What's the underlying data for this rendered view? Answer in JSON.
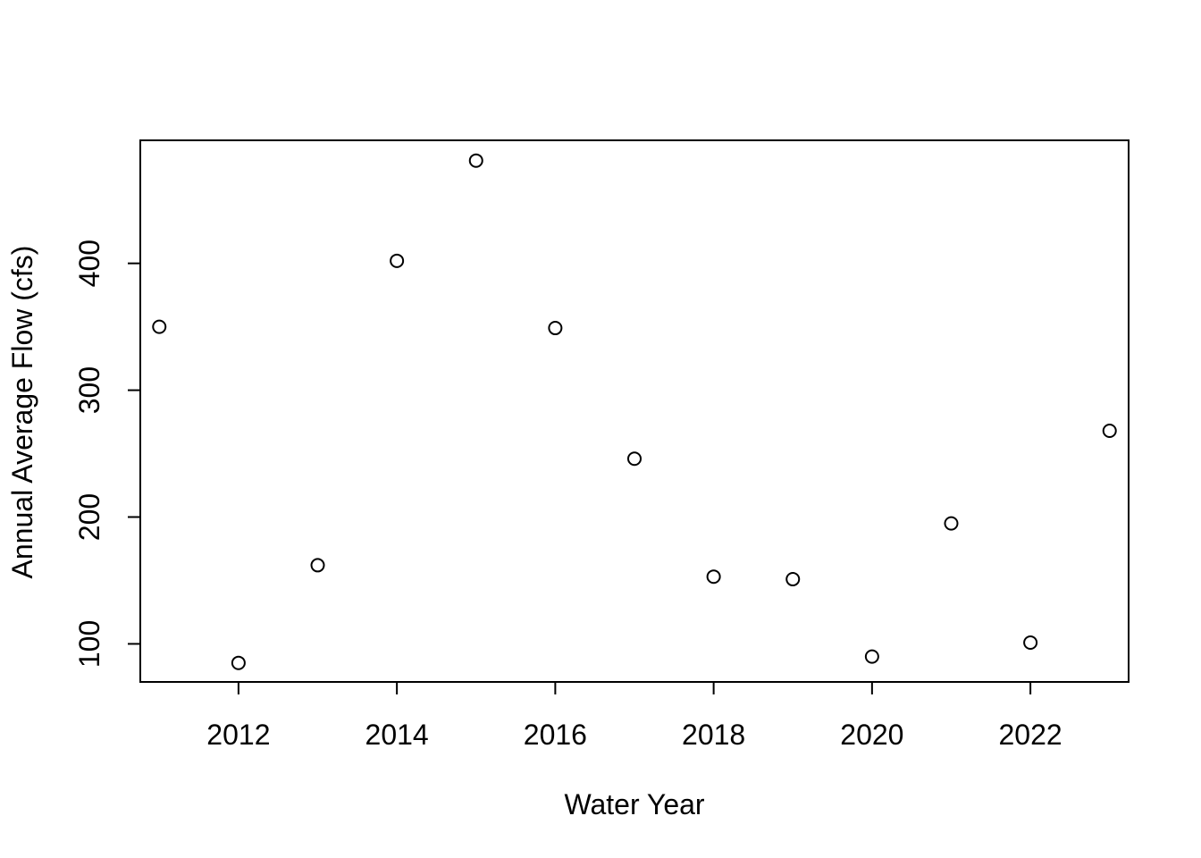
{
  "chart_data": {
    "type": "scatter",
    "title": "",
    "xlabel": "Water Year",
    "ylabel": "Annual Average Flow (cfs)",
    "xlim": [
      2010.76,
      2023.24
    ],
    "ylim": [
      70,
      497
    ],
    "x_ticks": [
      2012,
      2014,
      2016,
      2018,
      2020,
      2022
    ],
    "y_ticks": [
      100,
      200,
      300,
      400
    ],
    "grid": false,
    "legend": "none",
    "marker": "open-circle",
    "x": [
      2011,
      2012,
      2013,
      2014,
      2015,
      2016,
      2017,
      2018,
      2019,
      2020,
      2021,
      2022,
      2023
    ],
    "y": [
      350,
      85,
      162,
      402,
      481,
      349,
      246,
      153,
      151,
      90,
      195,
      101,
      268
    ]
  }
}
